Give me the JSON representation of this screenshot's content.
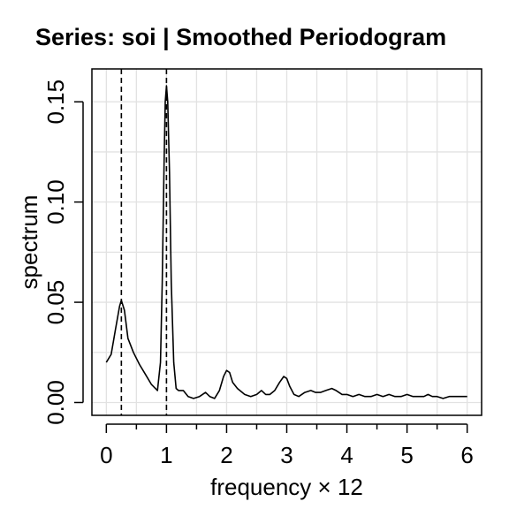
{
  "chart_data": {
    "type": "line",
    "title": "Series: soi  |  Smoothed Periodogram",
    "xlabel": "frequency × 12",
    "ylabel": "spectrum",
    "xlim": [
      0,
      6
    ],
    "ylim": [
      0,
      0.16
    ],
    "x_ticks": [
      "0",
      "1",
      "2",
      "3",
      "4",
      "5",
      "6"
    ],
    "y_ticks": [
      "0.00",
      "0.05",
      "0.10",
      "0.15"
    ],
    "grid": true,
    "reference_lines_x": [
      0.25,
      1.0
    ],
    "series": [
      {
        "x": [
          0.0,
          0.08,
          0.15,
          0.22,
          0.25,
          0.3,
          0.36,
          0.45,
          0.55,
          0.65,
          0.75,
          0.85,
          0.9,
          0.93,
          0.96,
          0.98,
          1.0,
          1.02,
          1.05,
          1.08,
          1.12,
          1.16,
          1.2,
          1.28,
          1.36,
          1.45,
          1.55,
          1.65,
          1.72,
          1.8,
          1.88,
          1.95,
          2.0,
          2.05,
          2.1,
          2.18,
          2.3,
          2.4,
          2.5,
          2.58,
          2.65,
          2.72,
          2.8,
          2.88,
          2.95,
          3.0,
          3.05,
          3.12,
          3.2,
          3.3,
          3.4,
          3.48,
          3.56,
          3.65,
          3.75,
          3.82,
          3.92,
          4.0,
          4.1,
          4.2,
          4.3,
          4.4,
          4.5,
          4.6,
          4.7,
          4.8,
          4.9,
          5.0,
          5.1,
          5.2,
          5.28,
          5.35,
          5.42,
          5.5,
          5.6,
          5.7,
          5.8,
          5.9,
          6.0
        ],
        "values": [
          0.02,
          0.024,
          0.036,
          0.048,
          0.051,
          0.046,
          0.032,
          0.025,
          0.019,
          0.014,
          0.009,
          0.006,
          0.02,
          0.06,
          0.12,
          0.15,
          0.158,
          0.15,
          0.115,
          0.06,
          0.02,
          0.007,
          0.006,
          0.006,
          0.003,
          0.002,
          0.003,
          0.005,
          0.003,
          0.002,
          0.006,
          0.013,
          0.016,
          0.015,
          0.01,
          0.007,
          0.004,
          0.003,
          0.004,
          0.006,
          0.004,
          0.004,
          0.006,
          0.01,
          0.013,
          0.012,
          0.008,
          0.004,
          0.003,
          0.005,
          0.006,
          0.005,
          0.005,
          0.006,
          0.007,
          0.006,
          0.004,
          0.004,
          0.003,
          0.004,
          0.003,
          0.003,
          0.004,
          0.003,
          0.004,
          0.003,
          0.003,
          0.004,
          0.003,
          0.003,
          0.003,
          0.004,
          0.003,
          0.003,
          0.002,
          0.003,
          0.003,
          0.003,
          0.003
        ]
      }
    ]
  }
}
